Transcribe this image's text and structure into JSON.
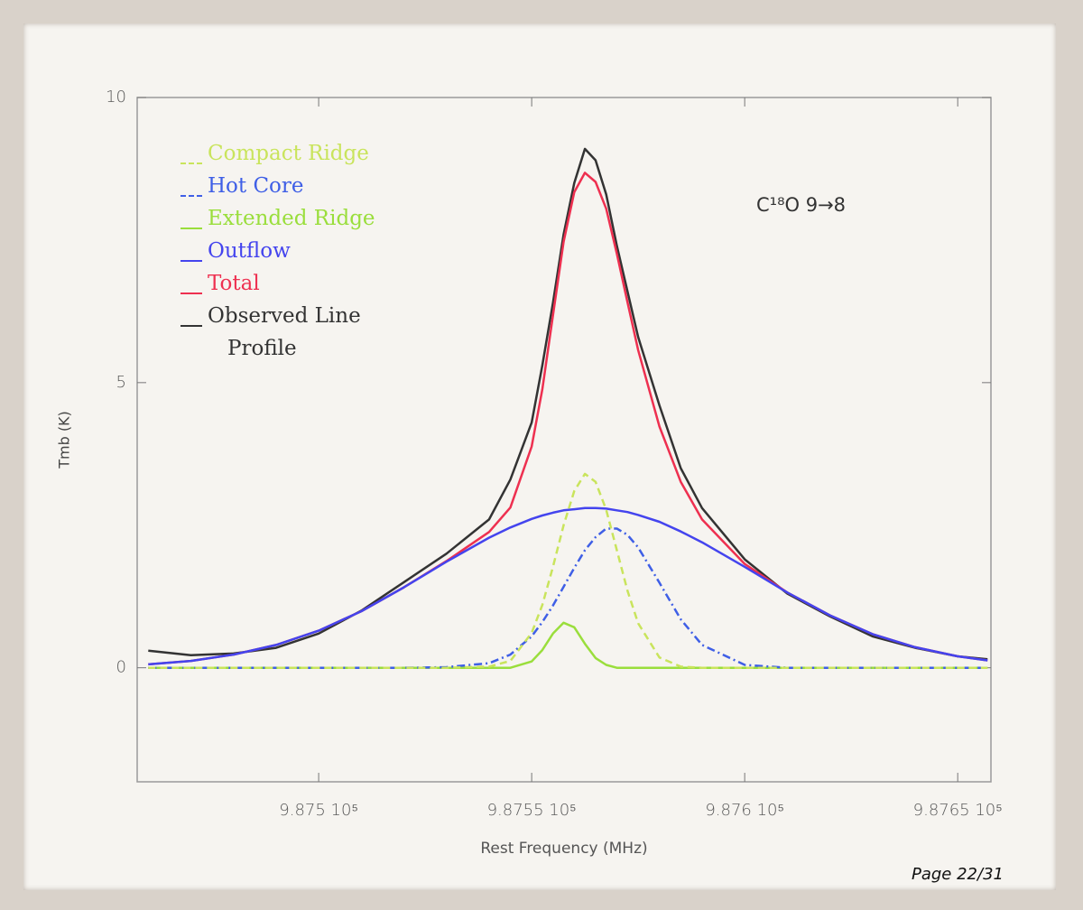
{
  "chart_data": {
    "type": "line",
    "annotation": "C¹⁸O  9→8",
    "x_label": "Rest Frequency (MHz)",
    "y_label": "Tmb (K)",
    "footer": "Page 22/31",
    "xlim": [
      987457.4,
      987657.8
    ],
    "ylim": [
      -2,
      10
    ],
    "xticks": [
      {
        "value": 987500,
        "label": "9.875 10⁵"
      },
      {
        "value": 987550,
        "label": "9.8755 10⁵"
      },
      {
        "value": 987600,
        "label": "9.876 10⁵"
      },
      {
        "value": 987650,
        "label": "9.8765 10⁵"
      }
    ],
    "yticks": [
      0,
      5,
      10
    ],
    "grid": false,
    "legend": "upper left",
    "x": [
      987460,
      987470,
      987480,
      987490,
      987500,
      987510,
      987520,
      987530,
      987540,
      987545,
      987550,
      987552.5,
      987555,
      987557.5,
      987560,
      987562.5,
      987565,
      987567.5,
      987570,
      987572.5,
      987575,
      987580,
      987585,
      987590,
      987600,
      987610,
      987620,
      987630,
      987640,
      987650,
      987657
    ],
    "series": [
      {
        "name": "Compact Ridge",
        "color": "#c9e45c",
        "dash": "dashed",
        "values": [
          0,
          0,
          0,
          0,
          0,
          0,
          0,
          0,
          0.02,
          0.12,
          0.61,
          1.1,
          1.77,
          2.5,
          3.1,
          3.4,
          3.26,
          2.77,
          2.06,
          1.35,
          0.78,
          0.18,
          0.02,
          0,
          0,
          0,
          0,
          0,
          0,
          0,
          0
        ]
      },
      {
        "name": "Hot Core",
        "color": "#3f5fe6",
        "dash": "dashdot",
        "values": [
          0,
          0,
          0,
          0,
          0,
          0,
          0,
          0.01,
          0.08,
          0.23,
          0.55,
          0.8,
          1.09,
          1.42,
          1.75,
          2.06,
          2.29,
          2.44,
          2.44,
          2.33,
          2.11,
          1.49,
          0.85,
          0.4,
          0.05,
          0,
          0,
          0,
          0,
          0,
          0
        ]
      },
      {
        "name": "Extended Ridge",
        "color": "#9ade3c",
        "dash": "solid",
        "values": [
          0,
          0,
          0,
          0,
          0,
          0,
          0,
          0,
          0,
          0,
          0.11,
          0.31,
          0.6,
          0.79,
          0.71,
          0.42,
          0.17,
          0.05,
          0,
          0,
          0,
          0,
          0,
          0,
          0,
          0,
          0,
          0,
          0,
          0,
          0
        ]
      },
      {
        "name": "Outflow",
        "color": "#4444ee",
        "dash": "solid",
        "values": [
          0.06,
          0.12,
          0.23,
          0.4,
          0.65,
          0.99,
          1.41,
          1.86,
          2.28,
          2.46,
          2.61,
          2.67,
          2.72,
          2.76,
          2.78,
          2.8,
          2.8,
          2.79,
          2.76,
          2.73,
          2.68,
          2.56,
          2.39,
          2.2,
          1.77,
          1.32,
          0.92,
          0.59,
          0.36,
          0.2,
          0.13
        ]
      },
      {
        "name": "Total",
        "color": "#ee3050",
        "dash": "solid",
        "values": [
          0.06,
          0.12,
          0.23,
          0.4,
          0.65,
          0.99,
          1.41,
          1.87,
          2.38,
          2.81,
          3.88,
          4.88,
          6.18,
          7.47,
          8.34,
          8.68,
          8.52,
          8.05,
          7.26,
          6.41,
          5.57,
          4.23,
          3.26,
          2.6,
          1.82,
          1.32,
          0.92,
          0.59,
          0.36,
          0.2,
          0.13
        ]
      },
      {
        "name": "Observed Line Profile",
        "color": "#333333",
        "dash": "solid",
        "values": [
          0.3,
          0.22,
          0.25,
          0.35,
          0.6,
          1.0,
          1.5,
          2.0,
          2.6,
          3.3,
          4.3,
          5.3,
          6.4,
          7.6,
          8.5,
          9.1,
          8.9,
          8.3,
          7.4,
          6.6,
          5.8,
          4.6,
          3.5,
          2.8,
          1.9,
          1.3,
          0.9,
          0.55,
          0.35,
          0.2,
          0.15
        ]
      }
    ]
  }
}
